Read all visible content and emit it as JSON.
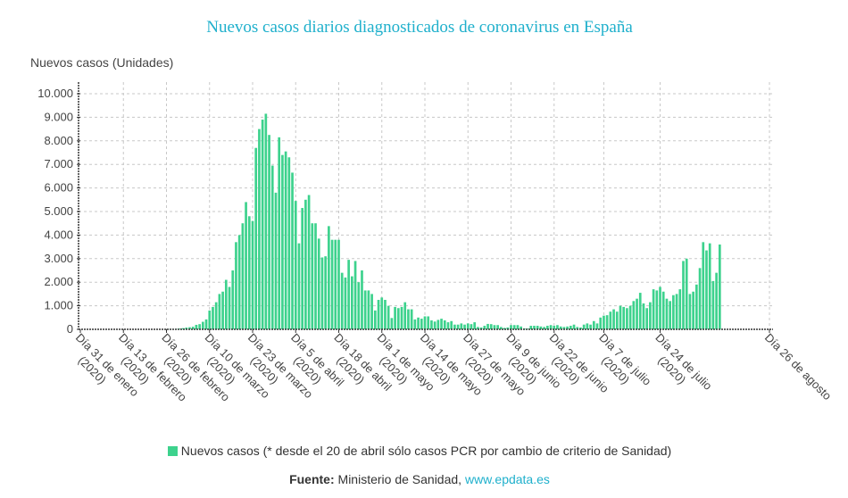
{
  "chart_data": {
    "type": "bar",
    "title": "Nuevos casos diarios diagnosticados de coronavirus en España",
    "ylabel": "Nuevos casos (Unidades)",
    "xlabel": "",
    "ylim": [
      0,
      10000
    ],
    "y_ticks": [
      "0",
      "1.000",
      "2.000",
      "3.000",
      "4.000",
      "5.000",
      "6.000",
      "7.000",
      "8.000",
      "9.000",
      "10.000"
    ],
    "y_tick_values": [
      0,
      1000,
      2000,
      3000,
      4000,
      5000,
      6000,
      7000,
      8000,
      9000,
      10000
    ],
    "x_ticks": [
      {
        "day": 0,
        "label": "Día 31 de enero",
        "year": "(2020)"
      },
      {
        "day": 13,
        "label": "Día 13 de febrero",
        "year": "(2020)"
      },
      {
        "day": 26,
        "label": "Día 26 de febrero",
        "year": "(2020)"
      },
      {
        "day": 39,
        "label": "Día 10 de marzo",
        "year": "(2020)"
      },
      {
        "day": 52,
        "label": "Día 23 de marzo",
        "year": "(2020)"
      },
      {
        "day": 65,
        "label": "Día 5 de abril",
        "year": "(2020)"
      },
      {
        "day": 78,
        "label": "Día 18 de abril",
        "year": "(2020)"
      },
      {
        "day": 91,
        "label": "Día 1 de mayo",
        "year": "(2020)"
      },
      {
        "day": 104,
        "label": "Día 14 de mayo",
        "year": "(2020)"
      },
      {
        "day": 117,
        "label": "Día 27 de mayo",
        "year": "(2020)"
      },
      {
        "day": 130,
        "label": "Día 9 de junio",
        "year": "(2020)"
      },
      {
        "day": 143,
        "label": "Día 22 de junio",
        "year": "(2020)"
      },
      {
        "day": 158,
        "label": "Día 7 de julio",
        "year": "(2020)"
      },
      {
        "day": 175,
        "label": "Día 24 de julio",
        "year": "(2020)"
      },
      {
        "day": 208,
        "label": "Día 26 de agosto",
        "year": ""
      }
    ],
    "x_range_days": [
      0,
      208
    ],
    "grid": true,
    "series": [
      {
        "name": "Nuevos casos (* desde el 20 de abril sólo casos PCR por cambio de criterio de Sanidad)",
        "color": "#3dd28d",
        "values": [
          0,
          0,
          0,
          0,
          0,
          0,
          0,
          0,
          0,
          0,
          0,
          0,
          0,
          0,
          0,
          0,
          0,
          0,
          0,
          0,
          0,
          0,
          0,
          0,
          0,
          1,
          2,
          6,
          10,
          15,
          30,
          50,
          75,
          90,
          110,
          190,
          220,
          320,
          420,
          800,
          950,
          1150,
          1500,
          1600,
          2100,
          1800,
          2500,
          3700,
          4000,
          4500,
          5400,
          4800,
          4600,
          7700,
          8500,
          8900,
          9150,
          8250,
          6950,
          5800,
          8150,
          7400,
          7550,
          7300,
          6650,
          5450,
          3650,
          5150,
          5500,
          5700,
          4500,
          4500,
          3850,
          3050,
          3100,
          4380,
          3800,
          3800,
          3800,
          2400,
          2200,
          2950,
          2250,
          2900,
          2000,
          2500,
          1650,
          1650,
          1500,
          800,
          1250,
          1350,
          1250,
          1000,
          480,
          950,
          900,
          950,
          1150,
          850,
          850,
          420,
          500,
          450,
          550,
          550,
          380,
          330,
          400,
          450,
          380,
          300,
          350,
          200,
          200,
          250,
          200,
          250,
          220,
          300,
          100,
          80,
          150,
          230,
          220,
          180,
          180,
          100,
          60,
          80,
          180,
          180,
          180,
          120,
          40,
          30,
          150,
          150,
          150,
          120,
          100,
          150,
          180,
          150,
          180,
          120,
          100,
          120,
          150,
          200,
          100,
          80,
          200,
          250,
          200,
          350,
          250,
          500,
          580,
          600,
          750,
          850,
          750,
          1000,
          950,
          900,
          1000,
          1200,
          1300,
          1550,
          1100,
          900,
          1150,
          1700,
          1650,
          1800,
          1600,
          1300,
          1200,
          1450,
          1500,
          1700,
          2900,
          3000,
          1500,
          1600,
          1900,
          2600,
          3700,
          3350,
          3650,
          2050,
          2400,
          3600
        ]
      }
    ]
  },
  "legend": {
    "label": "Nuevos casos (* desde el 20 de abril sólo casos PCR por cambio de criterio de Sanidad)"
  },
  "source": {
    "prefix": "Fuente:",
    "text": " Ministerio de Sanidad, ",
    "link": "www.epdata.es"
  }
}
